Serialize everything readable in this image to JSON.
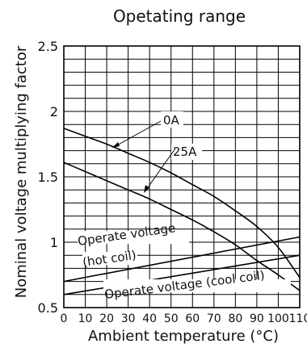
{
  "chart_data": {
    "type": "line",
    "title": "Opetating range",
    "xlabel": "Ambient temperature (°C)",
    "ylabel": "Nominal voltage multiplying factor",
    "xlim": [
      0,
      110
    ],
    "ylim": [
      0.5,
      2.5
    ],
    "x_ticks": [
      0,
      10,
      20,
      30,
      40,
      50,
      60,
      70,
      80,
      90,
      100,
      110
    ],
    "y_ticks": [
      0.5,
      1,
      1.5,
      2,
      2.5
    ],
    "y_tick_labels": [
      "0.5",
      "1",
      "1.5",
      "2",
      "2.5"
    ],
    "x_grid_step": 10,
    "y_grid_step": 0.1,
    "grid": true,
    "series": [
      {
        "name": "0A",
        "x": [
          0,
          10,
          20,
          30,
          40,
          50,
          60,
          70,
          80,
          90,
          100,
          110
        ],
        "y": [
          1.87,
          1.81,
          1.75,
          1.68,
          1.61,
          1.53,
          1.44,
          1.35,
          1.24,
          1.12,
          0.96,
          0.73
        ]
      },
      {
        "name": "25A",
        "x": [
          0,
          10,
          20,
          30,
          40,
          50,
          60,
          70,
          80,
          90,
          100,
          110
        ],
        "y": [
          1.61,
          1.54,
          1.47,
          1.4,
          1.33,
          1.25,
          1.17,
          1.08,
          0.98,
          0.86,
          0.75,
          0.63
        ]
      },
      {
        "name": "Operate voltage (hot coil)",
        "x": [
          0,
          110
        ],
        "y": [
          0.7,
          1.04
        ]
      },
      {
        "name": "Operate voltage (cool coil)",
        "x": [
          0,
          110
        ],
        "y": [
          0.6,
          0.9
        ]
      }
    ],
    "annotations": [
      {
        "text": "0A",
        "target": "0A"
      },
      {
        "text": "25A",
        "target": "25A"
      },
      {
        "text": "Operate voltage",
        "target": "Operate voltage (hot coil)"
      },
      {
        "text": "(hot coil)",
        "target": "Operate voltage (hot coil)"
      },
      {
        "text": "Operate voltage (cool coil)",
        "target": "Operate voltage (cool coil)"
      }
    ]
  }
}
